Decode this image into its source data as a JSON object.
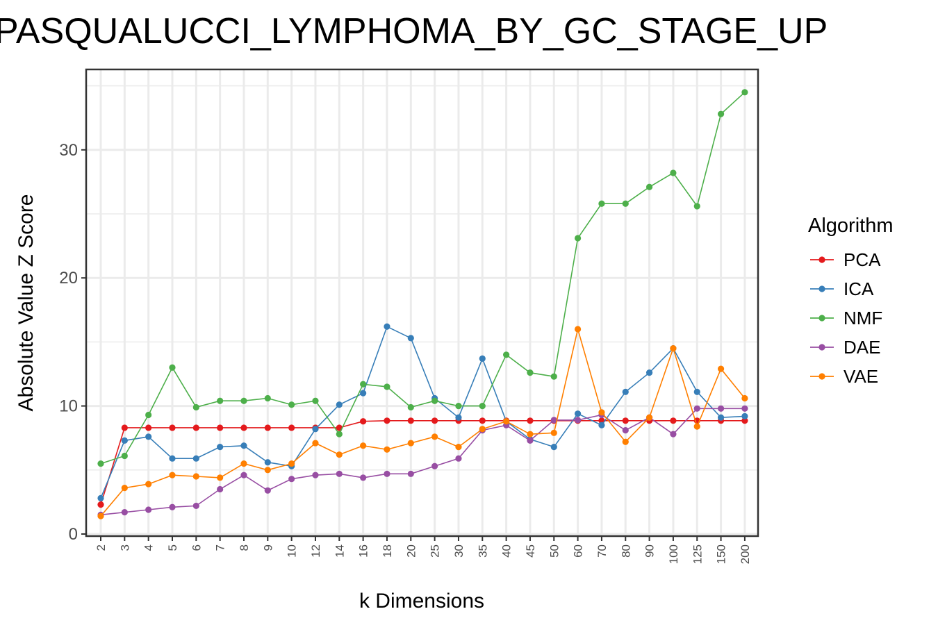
{
  "chart_data": {
    "type": "line",
    "title": "PASQUALUCCI_LYMPHOMA_BY_GC_STAGE_UP",
    "xlabel": "k Dimensions",
    "ylabel": "Absolute Value Z Score",
    "ylim": [
      0,
      35.5
    ],
    "yticks": [
      0,
      10,
      20,
      30
    ],
    "grid": true,
    "legend_title": "Algorithm",
    "legend_position": "right",
    "categories": [
      "2",
      "3",
      "4",
      "5",
      "6",
      "7",
      "8",
      "9",
      "10",
      "12",
      "14",
      "16",
      "18",
      "20",
      "25",
      "30",
      "35",
      "40",
      "45",
      "50",
      "60",
      "70",
      "80",
      "90",
      "100",
      "125",
      "150",
      "200"
    ],
    "series": [
      {
        "name": "PCA",
        "color": "#e41a1c",
        "values": [
          2.3,
          8.3,
          8.3,
          8.3,
          8.3,
          8.3,
          8.3,
          8.3,
          8.3,
          8.3,
          8.3,
          8.8,
          8.85,
          8.85,
          8.85,
          8.85,
          8.85,
          8.85,
          8.85,
          8.85,
          8.85,
          8.85,
          8.85,
          8.85,
          8.85,
          8.85,
          8.85,
          8.85
        ]
      },
      {
        "name": "ICA",
        "color": "#377eb8",
        "values": [
          2.8,
          7.3,
          7.6,
          5.9,
          5.9,
          6.8,
          6.9,
          5.6,
          5.3,
          8.2,
          10.1,
          11.0,
          16.2,
          15.3,
          10.6,
          9.1,
          13.7,
          8.8,
          7.4,
          6.8,
          9.4,
          8.5,
          11.1,
          12.6,
          14.5,
          11.1,
          9.1,
          9.2
        ]
      },
      {
        "name": "NMF",
        "color": "#4daf4a",
        "values": [
          5.5,
          6.1,
          9.3,
          13.0,
          9.9,
          10.4,
          10.4,
          10.6,
          10.1,
          10.4,
          7.8,
          11.7,
          11.5,
          9.9,
          10.4,
          10.0,
          10.0,
          14.0,
          12.6,
          12.3,
          23.1,
          25.8,
          25.8,
          27.1,
          28.2,
          25.6,
          32.8,
          34.5
        ]
      },
      {
        "name": "DAE",
        "color": "#984ea3",
        "values": [
          1.5,
          1.7,
          1.9,
          2.1,
          2.2,
          3.5,
          4.6,
          3.4,
          4.3,
          4.6,
          4.7,
          4.4,
          4.7,
          4.7,
          5.3,
          5.9,
          8.1,
          8.5,
          7.3,
          8.9,
          8.9,
          9.3,
          8.1,
          9.1,
          7.8,
          9.8,
          9.8,
          9.8
        ]
      },
      {
        "name": "VAE",
        "color": "#ff7f00",
        "values": [
          1.4,
          3.6,
          3.9,
          4.6,
          4.5,
          4.4,
          5.5,
          5.0,
          5.5,
          7.1,
          6.2,
          6.9,
          6.6,
          7.1,
          7.6,
          6.8,
          8.2,
          8.8,
          7.8,
          7.9,
          16.0,
          9.5,
          7.2,
          9.1,
          14.5,
          8.4,
          12.9,
          10.6
        ]
      }
    ]
  }
}
